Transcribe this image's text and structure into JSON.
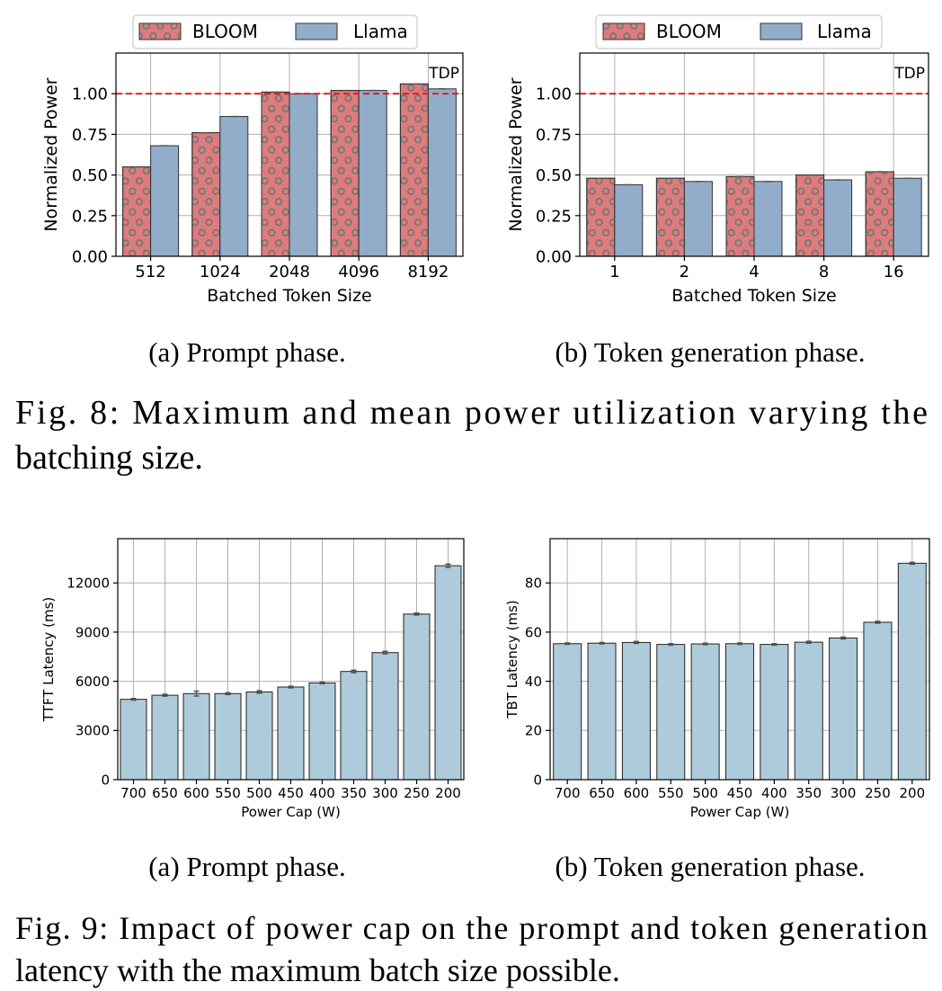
{
  "colors": {
    "bloom": "#de7c7d",
    "llama": "#91adc9",
    "latency_bar": "#aecbdb",
    "tdp": "#e41414",
    "grid": "#b0b0b0",
    "errorbar": "#555555"
  },
  "fig8": {
    "caption_line1": "Fig. 8: Maximum and mean power utilization varying the",
    "caption_line2": "batching size.",
    "legend": {
      "bloom": "BLOOM",
      "llama": "Llama"
    },
    "subcaption_a": "(a) Prompt phase.",
    "subcaption_b": "(b) Token generation phase."
  },
  "fig9": {
    "caption_line1": "Fig. 9: Impact of power cap on the prompt and token generation",
    "caption_line2": "latency with the maximum batch size possible.",
    "subcaption_a": "(a) Prompt phase.",
    "subcaption_b": "(b) Token generation phase."
  },
  "chart_data": [
    {
      "id": "fig8a",
      "type": "bar",
      "title": "",
      "xlabel": "Batched Token Size",
      "ylabel": "Normalized Power",
      "categories": [
        "512",
        "1024",
        "2048",
        "4096",
        "8192"
      ],
      "series": [
        {
          "name": "BLOOM",
          "values": [
            0.55,
            0.76,
            1.01,
            1.02,
            1.06
          ]
        },
        {
          "name": "Llama",
          "values": [
            0.68,
            0.86,
            1.0,
            1.02,
            1.03
          ]
        }
      ],
      "ylim": [
        0,
        1.25
      ],
      "yticks": [
        0.0,
        0.25,
        0.5,
        0.75,
        1.0
      ],
      "ytick_labels": [
        "0.00",
        "0.25",
        "0.50",
        "0.75",
        "1.00"
      ],
      "reference_line": {
        "label": "TDP",
        "value": 1.0
      },
      "legend": "top",
      "grid": true
    },
    {
      "id": "fig8b",
      "type": "bar",
      "title": "",
      "xlabel": "Batched Token Size",
      "ylabel": "Normalized Power",
      "categories": [
        "1",
        "2",
        "4",
        "8",
        "16"
      ],
      "series": [
        {
          "name": "BLOOM",
          "values": [
            0.48,
            0.48,
            0.49,
            0.5,
            0.52
          ]
        },
        {
          "name": "Llama",
          "values": [
            0.44,
            0.46,
            0.46,
            0.47,
            0.48
          ]
        }
      ],
      "ylim": [
        0,
        1.25
      ],
      "yticks": [
        0.0,
        0.25,
        0.5,
        0.75,
        1.0
      ],
      "ytick_labels": [
        "0.00",
        "0.25",
        "0.50",
        "0.75",
        "1.00"
      ],
      "reference_line": {
        "label": "TDP",
        "value": 1.0
      },
      "legend": "top",
      "grid": true
    },
    {
      "id": "fig9a",
      "type": "bar",
      "title": "",
      "xlabel": "Power Cap (W)",
      "ylabel": "TTFT Latency (ms)",
      "categories": [
        "700",
        "650",
        "600",
        "550",
        "500",
        "450",
        "400",
        "350",
        "300",
        "250",
        "200"
      ],
      "values": [
        4900,
        5150,
        5250,
        5250,
        5350,
        5650,
        5900,
        6600,
        7750,
        10100,
        13050
      ],
      "errors": [
        50,
        60,
        150,
        60,
        80,
        50,
        50,
        80,
        80,
        60,
        100
      ],
      "ylim": [
        0,
        14700
      ],
      "yticks": [
        0,
        3000,
        6000,
        9000,
        12000
      ],
      "ytick_labels": [
        "0",
        "3000",
        "6000",
        "9000",
        "12000"
      ],
      "grid": true
    },
    {
      "id": "fig9b",
      "type": "bar",
      "title": "",
      "xlabel": "Power Cap (W)",
      "ylabel": "TBT Latency (ms)",
      "categories": [
        "700",
        "650",
        "600",
        "550",
        "500",
        "450",
        "400",
        "350",
        "300",
        "250",
        "200"
      ],
      "values": [
        55.3,
        55.5,
        55.8,
        55.0,
        55.2,
        55.3,
        55.0,
        55.9,
        57.6,
        64.0,
        88.0
      ],
      "errors": [
        0.3,
        0.3,
        0.4,
        0.3,
        0.3,
        0.3,
        0.3,
        0.4,
        0.4,
        0.4,
        0.4
      ],
      "ylim": [
        0,
        98
      ],
      "yticks": [
        0,
        20,
        40,
        60,
        80
      ],
      "ytick_labels": [
        "0",
        "20",
        "40",
        "60",
        "80"
      ],
      "grid": true
    }
  ]
}
